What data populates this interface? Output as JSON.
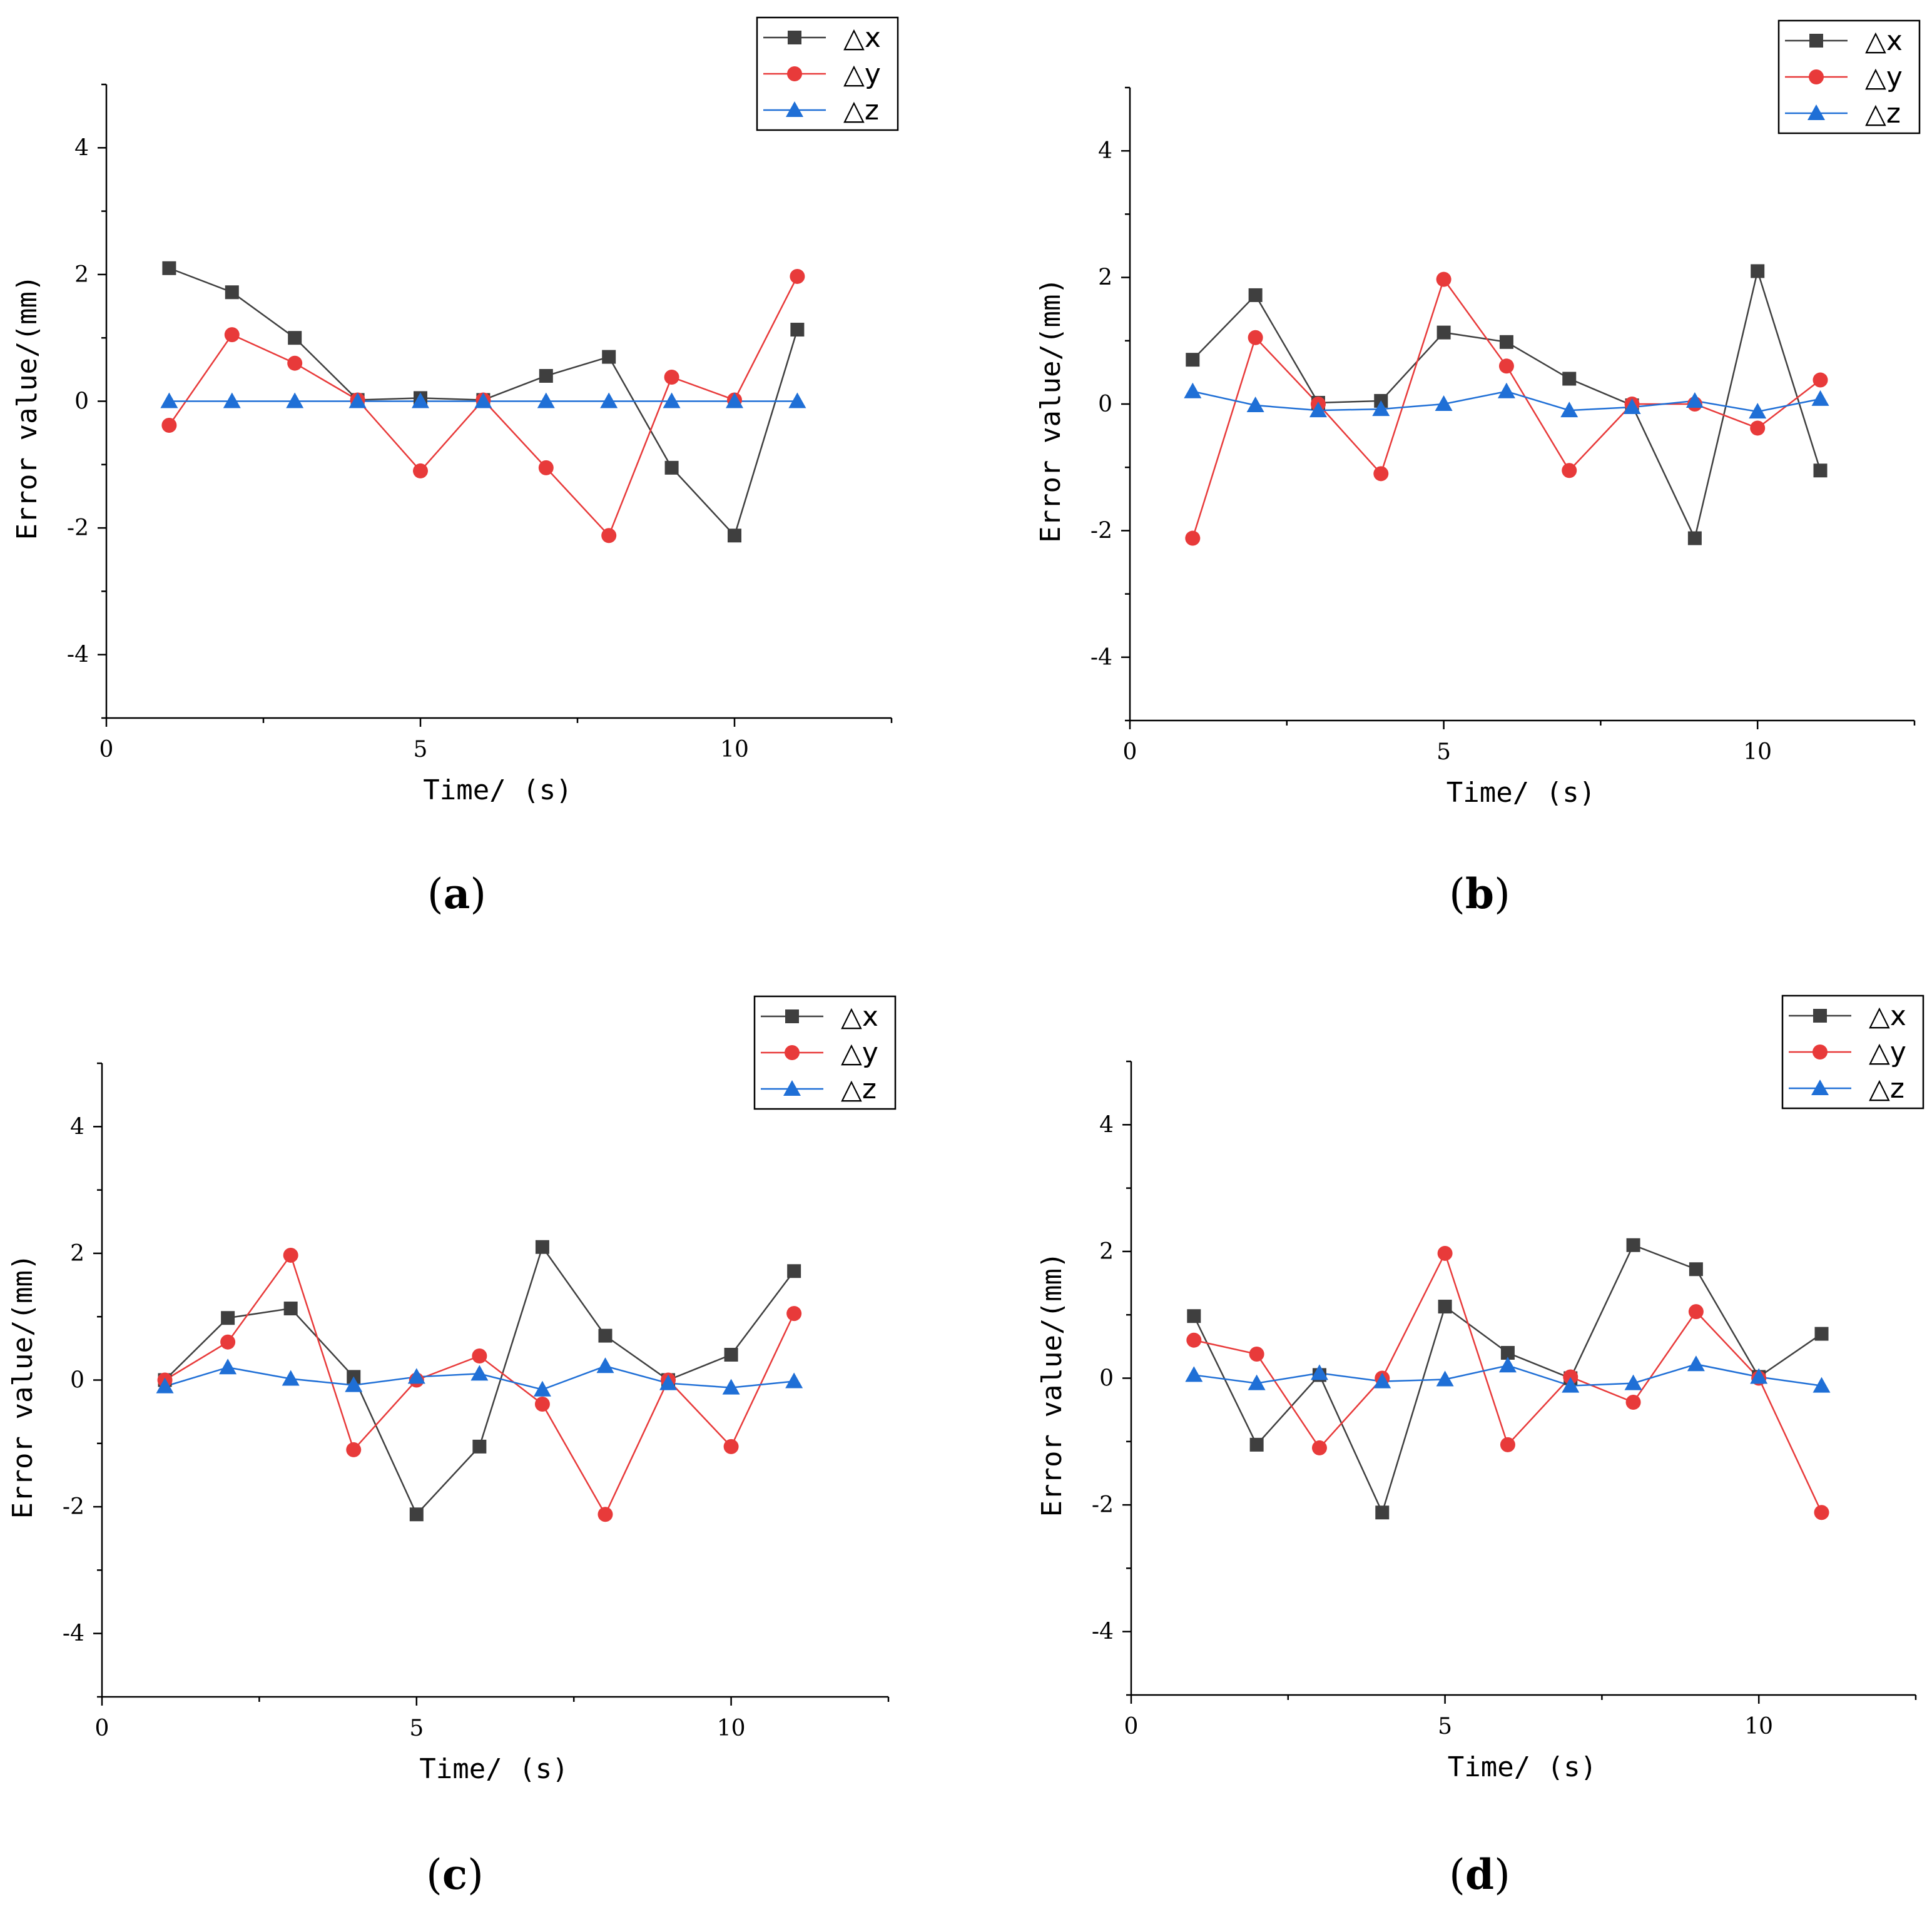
{
  "chart_data": [
    {
      "type": "line",
      "panel_label": "a",
      "xlabel": "Time/ (s)",
      "ylabel": "Error value/(mm)",
      "xlim": [
        0,
        12.5
      ],
      "ylim": [
        -5,
        5
      ],
      "xticks": [
        0,
        5,
        10
      ],
      "yticks": [
        -4,
        -2,
        0,
        2,
        4
      ],
      "legend_position": "top-right",
      "x": [
        1,
        2,
        3,
        4,
        5,
        6,
        7,
        8,
        9,
        10,
        11
      ],
      "series": [
        {
          "name": "△x",
          "color": "#3f3f3f",
          "marker": "square",
          "values": [
            2.1,
            1.72,
            1.0,
            0.02,
            0.05,
            0.02,
            0.4,
            0.7,
            -1.05,
            -2.12,
            1.13
          ]
        },
        {
          "name": "△y",
          "color": "#e83a3a",
          "marker": "circle",
          "values": [
            -0.38,
            1.05,
            0.6,
            0.02,
            -1.1,
            0.02,
            -1.05,
            -2.12,
            0.38,
            0.02,
            1.97
          ]
        },
        {
          "name": "△z",
          "color": "#1f6fd6",
          "marker": "triangle",
          "values": [
            0.0,
            0.0,
            0.0,
            0.0,
            0.0,
            0.0,
            0.0,
            0.0,
            0.0,
            0.0,
            0.0
          ]
        }
      ]
    },
    {
      "type": "line",
      "panel_label": "b",
      "xlabel": "Time/ (s)",
      "ylabel": "Error value/(mm)",
      "xlim": [
        0,
        12.5
      ],
      "ylim": [
        -5,
        5
      ],
      "xticks": [
        0,
        5,
        10
      ],
      "yticks": [
        -4,
        -2,
        0,
        2,
        4
      ],
      "legend_position": "top-right",
      "x": [
        1,
        2,
        3,
        4,
        5,
        6,
        7,
        8,
        9,
        10,
        11
      ],
      "series": [
        {
          "name": "△x",
          "color": "#3f3f3f",
          "marker": "square",
          "values": [
            0.7,
            1.72,
            0.02,
            0.05,
            1.13,
            0.98,
            0.4,
            -0.02,
            -2.12,
            2.1,
            -1.05
          ]
        },
        {
          "name": "△y",
          "color": "#e83a3a",
          "marker": "circle",
          "values": [
            -2.12,
            1.05,
            0.0,
            -1.1,
            1.97,
            0.6,
            -1.05,
            0.0,
            0.0,
            -0.38,
            0.38
          ]
        },
        {
          "name": "△z",
          "color": "#1f6fd6",
          "marker": "triangle",
          "values": [
            0.2,
            -0.02,
            -0.1,
            -0.08,
            0.0,
            0.2,
            -0.1,
            -0.05,
            0.05,
            -0.12,
            0.08
          ]
        }
      ]
    },
    {
      "type": "line",
      "panel_label": "c",
      "xlabel": "Time/ (s)",
      "ylabel": "Error value/(mm)",
      "xlim": [
        0,
        12.5
      ],
      "ylim": [
        -5,
        5
      ],
      "xticks": [
        0,
        5,
        10
      ],
      "yticks": [
        -4,
        -2,
        0,
        2,
        4
      ],
      "legend_position": "top-right",
      "x": [
        1,
        2,
        3,
        4,
        5,
        6,
        7,
        8,
        9,
        10,
        11
      ],
      "series": [
        {
          "name": "△x",
          "color": "#3f3f3f",
          "marker": "square",
          "values": [
            0.0,
            0.98,
            1.13,
            0.05,
            -2.12,
            -1.05,
            2.1,
            0.7,
            0.0,
            0.4,
            1.72
          ]
        },
        {
          "name": "△y",
          "color": "#e83a3a",
          "marker": "circle",
          "values": [
            0.0,
            0.6,
            1.97,
            -1.1,
            0.0,
            0.38,
            -0.38,
            -2.12,
            0.0,
            -1.05,
            1.05
          ]
        },
        {
          "name": "△z",
          "color": "#1f6fd6",
          "marker": "triangle",
          "values": [
            -0.1,
            0.2,
            0.02,
            -0.08,
            0.05,
            0.1,
            -0.15,
            0.22,
            -0.05,
            -0.12,
            -0.02
          ]
        }
      ]
    },
    {
      "type": "line",
      "panel_label": "d",
      "xlabel": "Time/ (s)",
      "ylabel": "Error value/(mm)",
      "xlim": [
        0,
        12.5
      ],
      "ylim": [
        -5,
        5
      ],
      "xticks": [
        0,
        5,
        10
      ],
      "yticks": [
        -4,
        -2,
        0,
        2,
        4
      ],
      "legend_position": "top-right",
      "x": [
        1,
        2,
        3,
        4,
        5,
        6,
        7,
        8,
        9,
        10,
        11
      ],
      "series": [
        {
          "name": "△x",
          "color": "#3f3f3f",
          "marker": "square",
          "values": [
            0.98,
            -1.05,
            0.05,
            -2.12,
            1.13,
            0.4,
            0.0,
            2.1,
            1.72,
            0.02,
            0.7
          ]
        },
        {
          "name": "△y",
          "color": "#e83a3a",
          "marker": "circle",
          "values": [
            0.6,
            0.38,
            -1.1,
            0.0,
            1.97,
            -1.05,
            0.02,
            -0.38,
            1.05,
            0.0,
            -2.12
          ]
        },
        {
          "name": "△z",
          "color": "#1f6fd6",
          "marker": "triangle",
          "values": [
            0.05,
            -0.08,
            0.08,
            -0.05,
            -0.02,
            0.2,
            -0.12,
            -0.08,
            0.22,
            0.02,
            -0.12
          ]
        }
      ]
    }
  ]
}
